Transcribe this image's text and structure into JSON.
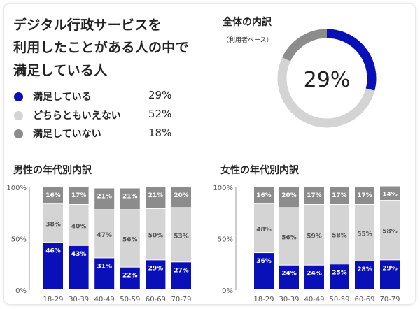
{
  "header": {
    "title_lines": [
      "デジタル行政サービスを",
      "利用したことがある人の中で",
      "満足している人"
    ]
  },
  "legend": [
    {
      "label": "満足している",
      "pct": "29%",
      "color": "#0a10b8"
    },
    {
      "label": "どちらともいえない",
      "pct": "52%",
      "color": "#d4d4d4"
    },
    {
      "label": "満足していない",
      "pct": "18%",
      "color": "#8c8c8c"
    }
  ],
  "donut": {
    "title": "全体の内訳",
    "subtitle": "（利用者ベース）",
    "center_label": "29%",
    "value": 29,
    "colors": {
      "fill": "#0a10b8",
      "track": "#d4d4d4",
      "rest": "#8c8c8c"
    }
  },
  "sections": {
    "male_title": "男性の年代別内訳",
    "female_title": "女性の年代別内訳"
  },
  "chart_data": [
    {
      "type": "bar",
      "stacked": true,
      "title": "男性の年代別内訳",
      "categories": [
        "18-29",
        "30-39",
        "40-49",
        "50-59",
        "60-69",
        "70-79"
      ],
      "y_ticks": [
        "100%",
        "50%",
        "0%"
      ],
      "ylim": [
        0,
        100
      ],
      "series": [
        {
          "name": "満足している",
          "color": "#0a10b8",
          "values": [
            46,
            43,
            31,
            22,
            29,
            27
          ],
          "labels": [
            "46%",
            "43%",
            "31%",
            "22%",
            "29%",
            "27%"
          ]
        },
        {
          "name": "どちらともいえない",
          "color": "#d4d4d4",
          "values": [
            38,
            40,
            47,
            56,
            50,
            53
          ],
          "labels": [
            "38%",
            "40%",
            "47%",
            "56%",
            "50%",
            "53%"
          ]
        },
        {
          "name": "満足していない",
          "color": "#8c8c8c",
          "values": [
            16,
            17,
            21,
            21,
            21,
            20
          ],
          "labels": [
            "16%",
            "17%",
            "21%",
            "21%",
            "21%",
            "20%"
          ]
        }
      ]
    },
    {
      "type": "bar",
      "stacked": true,
      "title": "女性の年代別内訳",
      "categories": [
        "18-29",
        "30-39",
        "40-49",
        "50-59",
        "60-69",
        "70-79"
      ],
      "y_ticks": [
        "100%",
        "50%",
        "0%"
      ],
      "ylim": [
        0,
        100
      ],
      "series": [
        {
          "name": "満足している",
          "color": "#0a10b8",
          "values": [
            36,
            24,
            24,
            25,
            28,
            29
          ],
          "labels": [
            "36%",
            "24%",
            "24%",
            "25%",
            "28%",
            "29%"
          ]
        },
        {
          "name": "どちらともいえない",
          "color": "#d4d4d4",
          "values": [
            48,
            56,
            59,
            58,
            55,
            58
          ],
          "labels": [
            "48%",
            "56%",
            "59%",
            "58%",
            "55%",
            "58%"
          ]
        },
        {
          "name": "満足していない",
          "color": "#8c8c8c",
          "values": [
            16,
            20,
            17,
            17,
            17,
            14
          ],
          "labels": [
            "16%",
            "20%",
            "17%",
            "17%",
            "17%",
            "14%"
          ]
        }
      ]
    }
  ]
}
